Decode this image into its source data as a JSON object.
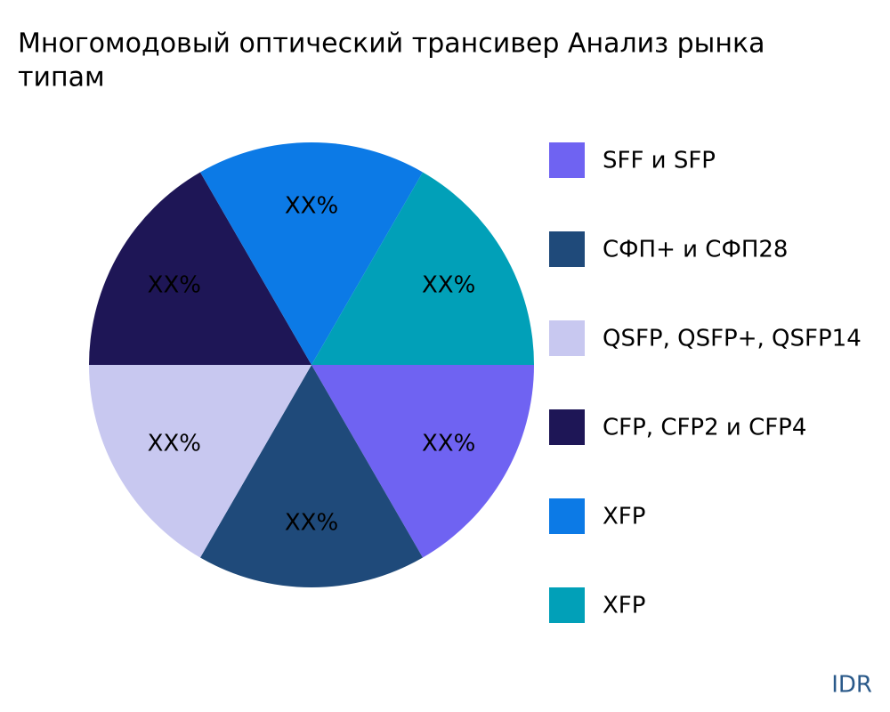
{
  "chart_data": {
    "type": "pie",
    "title_lines": [
      "Многомодовый оптический трансивер Анализ рынка",
      "типам"
    ],
    "categories": [
      "SFF и SFP",
      "СФП+ и СФП28",
      "QSFP, QSFP+, QSFP14",
      "CFP, CFP2 и CFP4",
      "XFP",
      "XFP"
    ],
    "values": [
      16.67,
      16.67,
      16.67,
      16.67,
      16.67,
      16.67
    ],
    "value_labels": [
      "XX%",
      "XX%",
      "XX%",
      "XX%",
      "XX%",
      "XX%"
    ],
    "colors": [
      "#6f63f2",
      "#1f4a7a",
      "#c8c8f0",
      "#1e1656",
      "#0c7ae6",
      "#01a0b8"
    ],
    "legend": "right"
  },
  "brand": "IDR"
}
